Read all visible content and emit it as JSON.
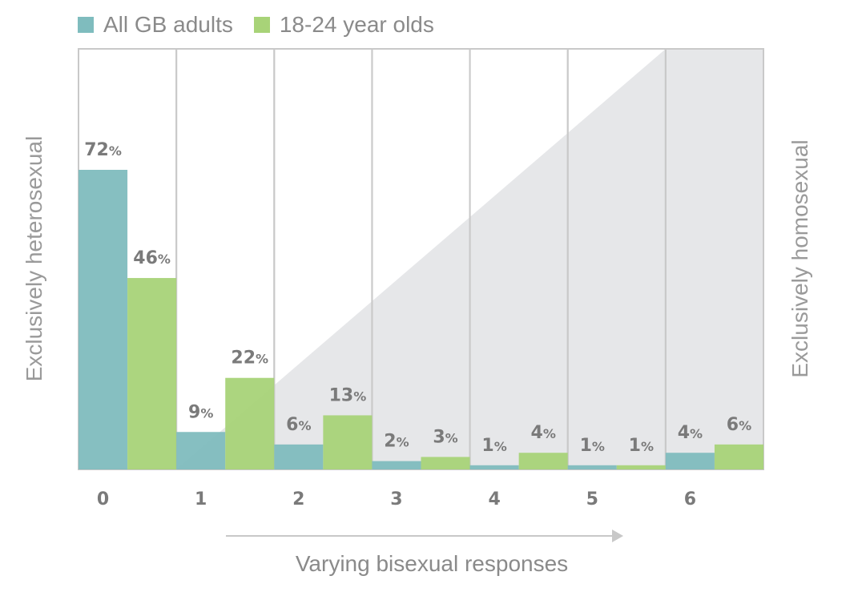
{
  "legend": {
    "items": [
      {
        "label": "All GB adults",
        "color": "#7fbcbe"
      },
      {
        "label": "18-24 year olds",
        "color": "#a8d378"
      }
    ]
  },
  "chart_data": {
    "type": "bar",
    "categories": [
      "0",
      "1",
      "2",
      "3",
      "4",
      "5",
      "6"
    ],
    "series": [
      {
        "name": "All GB adults",
        "values": [
          72,
          9,
          6,
          2,
          1,
          1,
          4
        ],
        "color": "#7fbcbe"
      },
      {
        "name": "18-24 year olds",
        "values": [
          46,
          22,
          13,
          3,
          4,
          1,
          6
        ],
        "color": "#a8d378"
      }
    ],
    "value_suffix": "%",
    "xlabel": "Varying bisexual responses",
    "left_label": "Exclusively heterosexual",
    "right_label": "Exclusively homosexual",
    "ylim": [
      0,
      80
    ],
    "grid": false,
    "legend_position": "top-left"
  }
}
